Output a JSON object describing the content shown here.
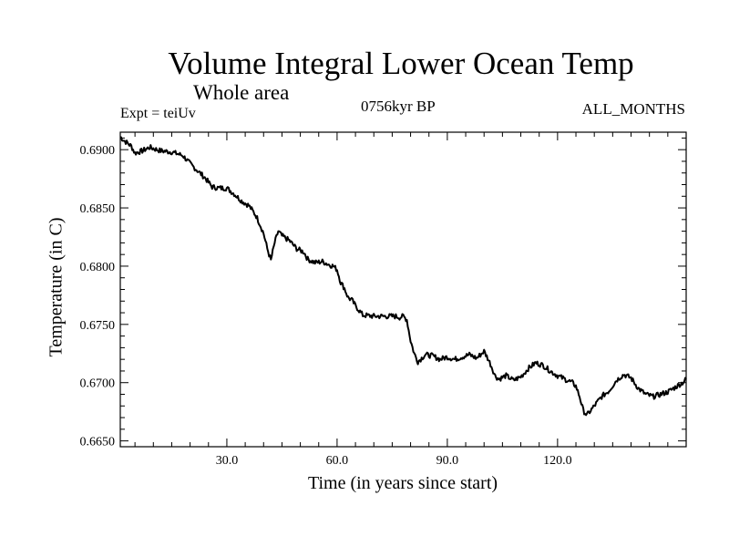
{
  "chart_data": {
    "type": "line",
    "title": "Volume Integral Lower Ocean Temp",
    "subtitle": "Whole area",
    "experiment_label": "Expt = teiUv",
    "period_label": "0756kyr BP",
    "months_label": "ALL_MONTHS",
    "xlabel": "Time (in years since start)",
    "ylabel": "Temperature (in C)",
    "xlim": [
      1,
      155
    ],
    "ylim": [
      0.6645,
      0.6915
    ],
    "x_ticks": [
      30,
      60,
      90,
      120
    ],
    "x_tick_labels": [
      "30.0",
      "60.0",
      "90.0",
      "120.0"
    ],
    "y_ticks": [
      0.665,
      0.67,
      0.675,
      0.68,
      0.685,
      0.69
    ],
    "y_tick_labels": [
      "0.6650",
      "0.6700",
      "0.6750",
      "0.6800",
      "0.6850",
      "0.6900"
    ],
    "line_color": "#000000",
    "series": [
      {
        "name": "Volume Integral Lower Ocean Temp",
        "x": [
          1,
          2,
          4,
          5,
          7,
          9,
          12,
          15,
          18,
          20,
          22,
          24,
          26,
          28,
          30,
          32,
          34,
          36,
          38,
          39,
          40,
          41,
          42,
          43,
          44,
          45,
          47,
          49,
          51,
          52,
          54,
          56,
          58,
          59,
          60,
          61,
          62,
          63,
          64,
          65,
          67,
          70,
          73,
          76,
          77,
          78,
          79,
          80,
          81,
          82,
          84,
          86,
          88,
          90,
          92,
          94,
          96,
          98,
          100,
          101,
          102,
          103,
          104,
          106,
          108,
          110,
          112,
          114,
          116,
          118,
          120,
          122,
          124,
          125,
          126,
          127,
          128,
          130,
          132,
          134,
          136,
          138,
          140,
          142,
          144,
          146,
          148,
          150,
          152,
          154,
          155
        ],
        "y": [
          0.6911,
          0.6908,
          0.6903,
          0.6897,
          0.6899,
          0.6902,
          0.6899,
          0.6898,
          0.6895,
          0.6888,
          0.6882,
          0.6876,
          0.6868,
          0.6867,
          0.6867,
          0.6862,
          0.6856,
          0.6852,
          0.6843,
          0.6836,
          0.6828,
          0.6815,
          0.6805,
          0.682,
          0.683,
          0.6826,
          0.6822,
          0.6815,
          0.6812,
          0.6806,
          0.6803,
          0.6804,
          0.6801,
          0.68,
          0.6797,
          0.6786,
          0.6781,
          0.6773,
          0.6771,
          0.6766,
          0.6758,
          0.6757,
          0.6757,
          0.6757,
          0.6756,
          0.6757,
          0.6754,
          0.6736,
          0.6725,
          0.6718,
          0.6724,
          0.6723,
          0.672,
          0.6722,
          0.672,
          0.6722,
          0.6724,
          0.6721,
          0.6727,
          0.6721,
          0.6714,
          0.6706,
          0.6703,
          0.6706,
          0.6702,
          0.6705,
          0.6712,
          0.6717,
          0.6715,
          0.671,
          0.6706,
          0.6703,
          0.67,
          0.6697,
          0.6688,
          0.6676,
          0.6672,
          0.668,
          0.6688,
          0.6693,
          0.6702,
          0.6707,
          0.6704,
          0.6695,
          0.669,
          0.6688,
          0.669,
          0.6692,
          0.6696,
          0.67,
          0.6703
        ]
      }
    ]
  }
}
